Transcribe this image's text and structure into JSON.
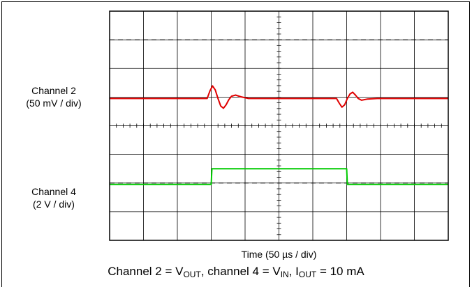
{
  "chart_data": {
    "type": "line",
    "title": "",
    "xlabel": "Time (50 µs / div)",
    "ylabel": "",
    "x_divisions": 10,
    "y_divisions": 8,
    "x_per_div_us": 50,
    "xlim_us": [
      0,
      500
    ],
    "grid": true,
    "channels": [
      {
        "label_line1": "Channel 2",
        "label_line2": "(50 mV / div)",
        "color": "#e00000",
        "volts_per_div": 0.05,
        "baseline_div": 3.05,
        "x_us": [
          0,
          50,
          100,
          144,
          148,
          152,
          156,
          160,
          164,
          168,
          172,
          176,
          180,
          186,
          194,
          205,
          230,
          270,
          300,
          335,
          339,
          343,
          347,
          351,
          355,
          359,
          363,
          367,
          372,
          380,
          395,
          430,
          460,
          500
        ],
        "y_mv": [
          0,
          0,
          0,
          0,
          13,
          22,
          15,
          0,
          -13,
          -17,
          -11,
          -2,
          4,
          6,
          3,
          0,
          0,
          0,
          0,
          0,
          -8,
          -15,
          -11,
          0,
          8,
          11,
          6,
          0,
          -3,
          -1,
          0,
          0,
          0,
          0
        ]
      },
      {
        "label_line1": "Channel 4",
        "label_line2": "(2 V / div)",
        "color": "#00cc00",
        "volts_per_div": 2,
        "baseline_div": 6.05,
        "x_us": [
          0,
          150,
          151,
          350,
          351,
          500
        ],
        "y_v": [
          0,
          0,
          1.1,
          1.1,
          0,
          0
        ]
      }
    ],
    "dashed_reference_divs": [
      1.0,
      6.0
    ]
  },
  "caption": {
    "prefix": "Channel 2 = V",
    "sub1": "OUT",
    "mid1": ", channel 4 = V",
    "sub2": "IN",
    "mid2": ", I",
    "sub3": "OUT",
    "suffix": " = 10 mA"
  }
}
